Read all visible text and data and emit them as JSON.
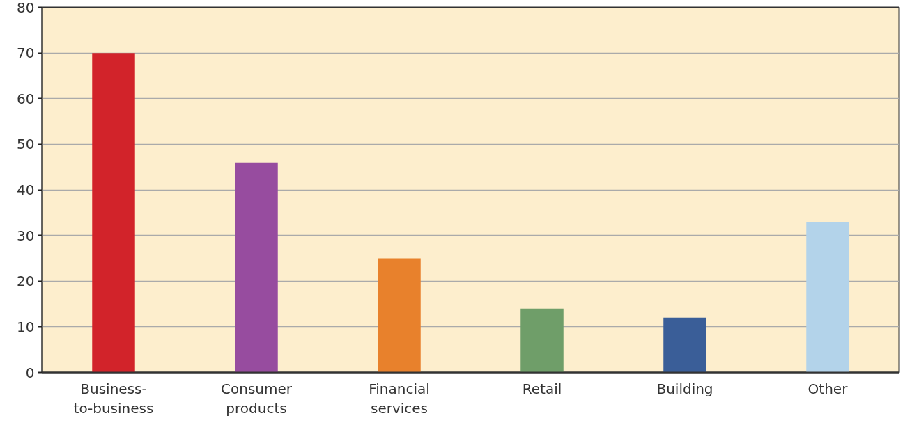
{
  "chart_data": {
    "type": "bar",
    "categories": [
      "Business-\nto-business",
      "Consumer\nproducts",
      "Financial\nservices",
      "Retail",
      "Building",
      "Other"
    ],
    "values": [
      70,
      46,
      25,
      14,
      12,
      33
    ],
    "colors": [
      "#d2232a",
      "#974c9f",
      "#e8812c",
      "#6f9e69",
      "#3a5e98",
      "#b3d3ea"
    ],
    "ylim": [
      0,
      80
    ],
    "yticks": [
      0,
      10,
      20,
      30,
      40,
      50,
      60,
      70,
      80
    ],
    "grid": "y"
  }
}
